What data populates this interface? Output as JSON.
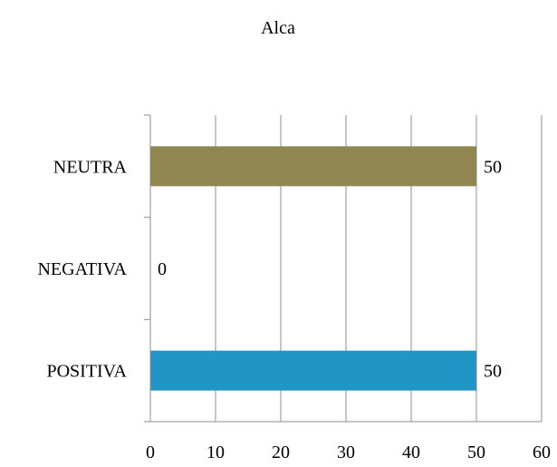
{
  "chart_data": {
    "type": "bar",
    "orientation": "horizontal",
    "title": "Alca",
    "categories": [
      "NEUTRA",
      "NEGATIVA",
      "POSITIVA"
    ],
    "values": [
      50,
      0,
      50
    ],
    "data_labels": [
      "50",
      "0",
      "50"
    ],
    "colors": [
      "#8f874f",
      "#8f874f",
      "#2196c6"
    ],
    "xlim": [
      0,
      60
    ],
    "x_ticks": [
      0,
      10,
      20,
      30,
      40,
      50,
      60
    ],
    "x_tick_labels": [
      "0",
      "10",
      "20",
      "30",
      "40",
      "50",
      "60"
    ],
    "grid": true,
    "legend": "none"
  }
}
